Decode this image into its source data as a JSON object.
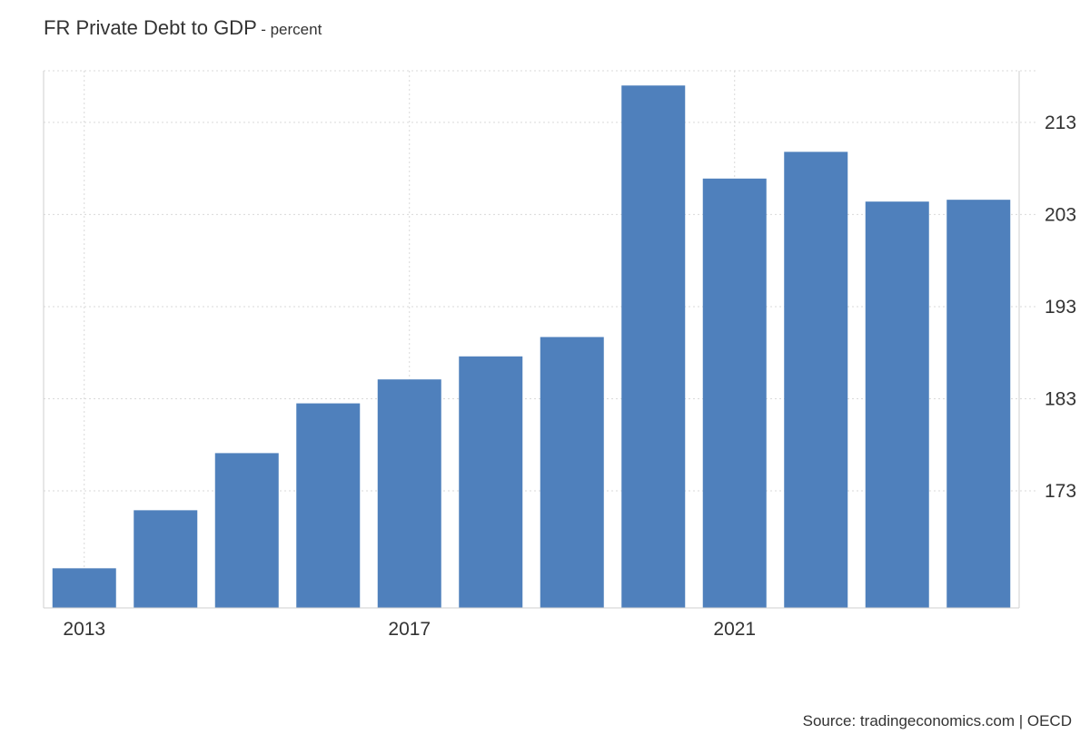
{
  "header": {
    "title": "FR Private Debt to GDP",
    "unit": "- percent"
  },
  "footer": {
    "source": "Source: tradingeconomics.com | OECD"
  },
  "chart_data": {
    "type": "bar",
    "title": "FR Private Debt to GDP",
    "subtitle": "- percent",
    "categories": [
      "2013",
      "2014",
      "2015",
      "2016",
      "2017",
      "2018",
      "2019",
      "2020",
      "2021",
      "2022",
      "2023",
      "2024"
    ],
    "values": [
      164.6,
      170.9,
      177.1,
      182.5,
      185.1,
      187.6,
      189.7,
      217.0,
      206.9,
      209.8,
      204.4,
      204.6
    ],
    "x_tick_labels": [
      "2013",
      "2017",
      "2021"
    ],
    "y_ticks": [
      173,
      183,
      193,
      203,
      213
    ],
    "ylim": [
      160.3,
      218.6
    ],
    "xlabel": "",
    "ylabel": "",
    "y_axis_side": "right",
    "grid": true,
    "legend": "none",
    "bar_color": "#4f80bc",
    "grid_color": "#d9d9d9",
    "text_color": "#333333"
  }
}
